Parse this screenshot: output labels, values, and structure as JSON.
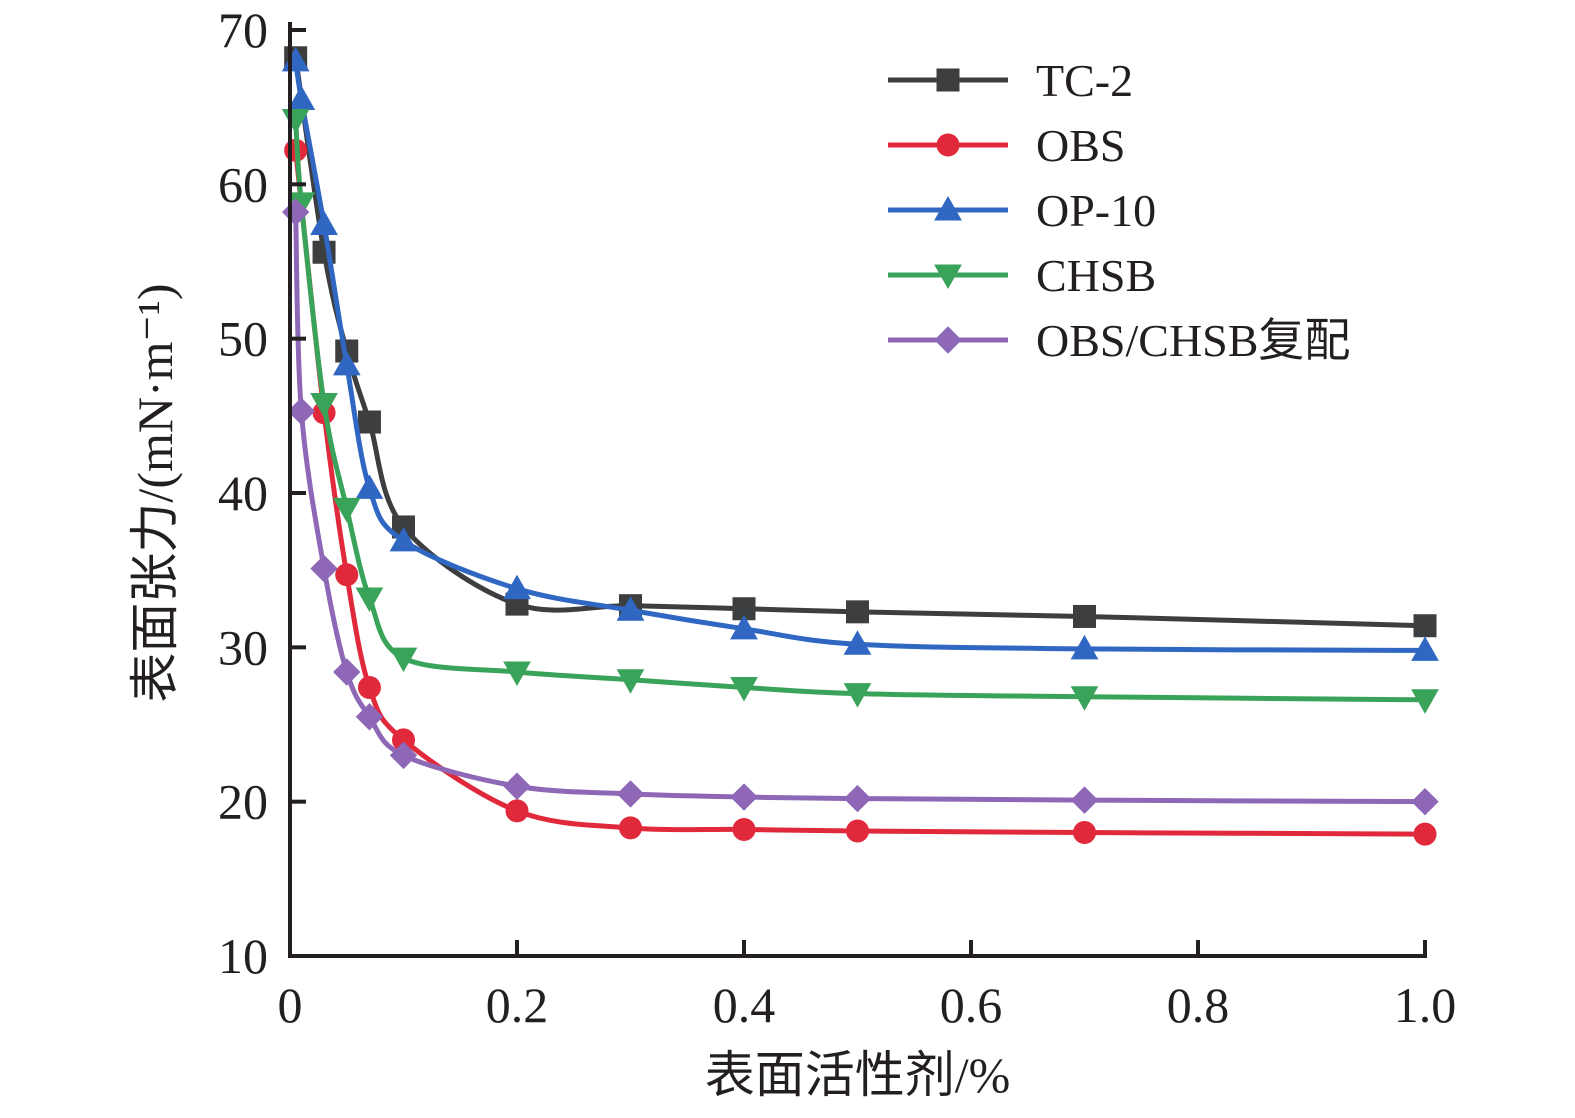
{
  "chart_data": {
    "type": "line",
    "xlabel": "表面活性剂/%",
    "ylabel": "表面张力/(mN·m⁻¹)",
    "xlim": [
      0,
      1.0
    ],
    "ylim": [
      10,
      70
    ],
    "x_ticks": [
      "0",
      "0.2",
      "0.4",
      "0.6",
      "0.8",
      "1.0"
    ],
    "y_ticks": [
      "10",
      "20",
      "30",
      "40",
      "50",
      "60",
      "70"
    ],
    "legend_position": "top-right",
    "grid": false,
    "series": [
      {
        "name": "TC-2",
        "color": "#3d3e40",
        "marker": "square",
        "x": [
          0.005,
          0.03,
          0.05,
          0.07,
          0.1,
          0.2,
          0.3,
          0.4,
          0.5,
          0.7,
          1.0
        ],
        "y": [
          68.2,
          55.6,
          49.2,
          44.6,
          37.8,
          32.8,
          32.7,
          32.5,
          32.3,
          32.0,
          31.4
        ]
      },
      {
        "name": "OBS",
        "color": "#e02a3c",
        "marker": "circle",
        "x": [
          0.005,
          0.03,
          0.05,
          0.07,
          0.1,
          0.2,
          0.3,
          0.4,
          0.5,
          0.7,
          1.0
        ],
        "y": [
          62.2,
          45.2,
          34.7,
          27.4,
          24.0,
          19.4,
          18.3,
          18.2,
          18.1,
          18.0,
          17.9
        ]
      },
      {
        "name": "OP-10",
        "color": "#2f67c2",
        "marker": "triangle-up",
        "x": [
          0.005,
          0.01,
          0.03,
          0.05,
          0.07,
          0.1,
          0.2,
          0.3,
          0.4,
          0.5,
          0.7,
          1.0
        ],
        "y": [
          68.0,
          65.5,
          57.4,
          48.3,
          40.3,
          36.9,
          33.8,
          32.4,
          31.2,
          30.2,
          29.9,
          29.8
        ]
      },
      {
        "name": "CHSB",
        "color": "#3aa35a",
        "marker": "triangle-down",
        "x": [
          0.005,
          0.01,
          0.03,
          0.05,
          0.07,
          0.1,
          0.2,
          0.3,
          0.4,
          0.5,
          0.7,
          1.0
        ],
        "y": [
          64.2,
          58.8,
          45.8,
          39.0,
          33.2,
          29.3,
          28.4,
          27.9,
          27.4,
          27.0,
          26.8,
          26.6
        ]
      },
      {
        "name": "OBS/CHSB复配",
        "color": "#8e68b6",
        "marker": "diamond",
        "x": [
          0.005,
          0.01,
          0.03,
          0.05,
          0.07,
          0.1,
          0.2,
          0.3,
          0.4,
          0.5,
          0.7,
          1.0
        ],
        "y": [
          58.2,
          45.3,
          35.1,
          28.4,
          25.5,
          23.0,
          21.0,
          20.5,
          20.3,
          20.2,
          20.1,
          20.0
        ]
      }
    ]
  }
}
